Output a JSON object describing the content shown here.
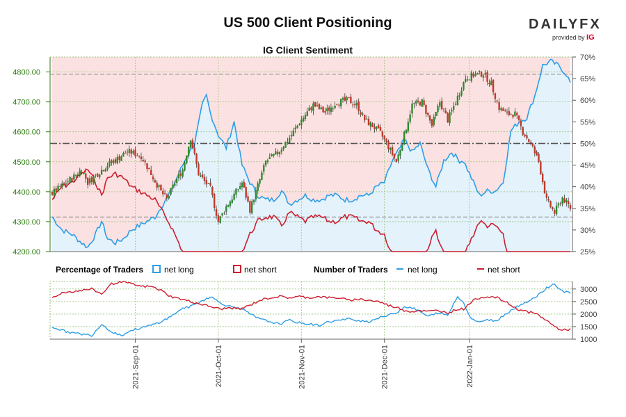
{
  "header": {
    "title": "US 500 Client Positioning",
    "subtitle": "IG Client Sentiment",
    "brand": "DAILYFX",
    "brand_sub": "provided by",
    "brand_ig": "IG"
  },
  "legend": {
    "pct_title": "Percentage of Traders",
    "pct_long": "net long",
    "pct_short": "net short",
    "num_title": "Number of Traders",
    "num_long": "net long",
    "num_short": "net short"
  },
  "colors": {
    "bull": "#2e8b2e",
    "bear": "#c0392b",
    "long": "#2e9ee6",
    "short": "#cc1f2f",
    "long_fill": "#e3f2fb",
    "short_fill": "#fbe1e1",
    "axis_left": "#2e7d10"
  },
  "chart_data": [
    {
      "type": "candlestick+line",
      "title": "IG Client Sentiment",
      "y_left": {
        "label": "",
        "range": [
          4200,
          4850
        ],
        "ticks": [
          "4200.00",
          "4300.00",
          "4400.00",
          "4500.00",
          "4600.00",
          "4700.00",
          "4800.00"
        ]
      },
      "y_right": {
        "label": "",
        "range": [
          25,
          70
        ],
        "unit": "%",
        "ticks": [
          "25%",
          "30%",
          "35%",
          "40%",
          "45%",
          "50%",
          "55%",
          "60%",
          "65%",
          "70%"
        ]
      },
      "reference_lines_pct": [
        66,
        50,
        33
      ],
      "x_ticks": [
        "2021-Sep-01",
        "2021-Oct-01",
        "2021-Nov-01",
        "2021-Dec-01",
        "2022-Jan-01"
      ],
      "price_anchors": [
        [
          0,
          4395
        ],
        [
          5,
          4420
        ],
        [
          10,
          4445
        ],
        [
          15,
          4475
        ],
        [
          18,
          4430
        ],
        [
          22,
          4455
        ],
        [
          28,
          4490
        ],
        [
          33,
          4510
        ],
        [
          38,
          4535
        ],
        [
          45,
          4520
        ],
        [
          50,
          4460
        ],
        [
          55,
          4400
        ],
        [
          58,
          4375
        ],
        [
          62,
          4430
        ],
        [
          66,
          4475
        ],
        [
          70,
          4580
        ],
        [
          74,
          4460
        ],
        [
          80,
          4410
        ],
        [
          84,
          4300
        ],
        [
          88,
          4350
        ],
        [
          92,
          4390
        ],
        [
          96,
          4430
        ],
        [
          100,
          4340
        ],
        [
          104,
          4420
        ],
        [
          108,
          4500
        ],
        [
          114,
          4530
        ],
        [
          120,
          4580
        ],
        [
          126,
          4640
        ],
        [
          132,
          4690
        ],
        [
          138,
          4665
        ],
        [
          144,
          4700
        ],
        [
          150,
          4705
        ],
        [
          154,
          4690
        ],
        [
          158,
          4640
        ],
        [
          162,
          4620
        ],
        [
          166,
          4595
        ],
        [
          170,
          4550
        ],
        [
          174,
          4500
        ],
        [
          178,
          4590
        ],
        [
          182,
          4690
        ],
        [
          187,
          4700
        ],
        [
          192,
          4620
        ],
        [
          196,
          4700
        ],
        [
          200,
          4640
        ],
        [
          204,
          4700
        ],
        [
          209,
          4780
        ],
        [
          213,
          4790
        ],
        [
          218,
          4795
        ],
        [
          222,
          4760
        ],
        [
          226,
          4680
        ],
        [
          230,
          4660
        ],
        [
          234,
          4660
        ],
        [
          238,
          4600
        ],
        [
          242,
          4560
        ],
        [
          246,
          4500
        ],
        [
          250,
          4370
        ],
        [
          254,
          4330
        ],
        [
          258,
          4380
        ],
        [
          262,
          4345
        ]
      ],
      "net_long_pct_anchors": [
        [
          0,
          33
        ],
        [
          5,
          30
        ],
        [
          10,
          29
        ],
        [
          15,
          27
        ],
        [
          18,
          26
        ],
        [
          22,
          29
        ],
        [
          25,
          32
        ],
        [
          28,
          28
        ],
        [
          32,
          27
        ],
        [
          36,
          28
        ],
        [
          40,
          30
        ],
        [
          44,
          31
        ],
        [
          48,
          32
        ],
        [
          52,
          33
        ],
        [
          56,
          36
        ],
        [
          60,
          39
        ],
        [
          64,
          43
        ],
        [
          68,
          47
        ],
        [
          72,
          50
        ],
        [
          76,
          59
        ],
        [
          78,
          61
        ],
        [
          80,
          57
        ],
        [
          84,
          52
        ],
        [
          88,
          49
        ],
        [
          92,
          55
        ],
        [
          96,
          45
        ],
        [
          100,
          41
        ],
        [
          104,
          38
        ],
        [
          108,
          37
        ],
        [
          112,
          37
        ],
        [
          116,
          39
        ],
        [
          120,
          36
        ],
        [
          124,
          37
        ],
        [
          128,
          38
        ],
        [
          132,
          37
        ],
        [
          136,
          37
        ],
        [
          140,
          38
        ],
        [
          144,
          38
        ],
        [
          148,
          37
        ],
        [
          152,
          37
        ],
        [
          156,
          38
        ],
        [
          160,
          38
        ],
        [
          164,
          40
        ],
        [
          168,
          41
        ],
        [
          172,
          46
        ],
        [
          176,
          49
        ],
        [
          178,
          51
        ],
        [
          182,
          48
        ],
        [
          186,
          50
        ],
        [
          190,
          44
        ],
        [
          194,
          40
        ],
        [
          198,
          46
        ],
        [
          202,
          48
        ],
        [
          206,
          46
        ],
        [
          208,
          46
        ],
        [
          212,
          42
        ],
        [
          216,
          38
        ],
        [
          220,
          39
        ],
        [
          224,
          39
        ],
        [
          228,
          41
        ],
        [
          232,
          53
        ],
        [
          236,
          55
        ],
        [
          240,
          56
        ],
        [
          244,
          61
        ],
        [
          248,
          68
        ],
        [
          252,
          69
        ],
        [
          256,
          68
        ],
        [
          260,
          66
        ],
        [
          262,
          64
        ]
      ],
      "net_short_pct_anchors": [
        [
          0,
          67
        ],
        [
          5,
          70
        ],
        [
          10,
          71
        ],
        [
          15,
          73
        ],
        [
          18,
          74
        ],
        [
          22,
          71
        ],
        [
          25,
          68
        ],
        [
          28,
          72
        ],
        [
          32,
          73
        ],
        [
          36,
          72
        ],
        [
          40,
          70
        ],
        [
          44,
          69
        ],
        [
          48,
          68
        ],
        [
          52,
          67
        ],
        [
          56,
          64
        ],
        [
          60,
          61
        ],
        [
          64,
          57
        ],
        [
          68,
          53
        ],
        [
          72,
          50
        ],
        [
          76,
          41
        ],
        [
          78,
          39
        ],
        [
          80,
          43
        ],
        [
          84,
          48
        ],
        [
          88,
          51
        ],
        [
          92,
          45
        ],
        [
          96,
          55
        ],
        [
          100,
          59
        ],
        [
          104,
          62
        ],
        [
          108,
          63
        ],
        [
          112,
          63
        ],
        [
          116,
          61
        ],
        [
          120,
          64
        ],
        [
          124,
          63
        ],
        [
          128,
          62
        ],
        [
          132,
          63
        ],
        [
          136,
          63
        ],
        [
          140,
          62
        ],
        [
          144,
          62
        ],
        [
          148,
          63
        ],
        [
          152,
          63
        ],
        [
          156,
          62
        ],
        [
          160,
          62
        ],
        [
          164,
          60
        ],
        [
          168,
          59
        ],
        [
          172,
          54
        ],
        [
          176,
          51
        ],
        [
          178,
          49
        ],
        [
          182,
          52
        ],
        [
          186,
          50
        ],
        [
          190,
          56
        ],
        [
          194,
          60
        ],
        [
          198,
          54
        ],
        [
          202,
          52
        ],
        [
          206,
          54
        ],
        [
          208,
          54
        ],
        [
          212,
          58
        ],
        [
          216,
          62
        ],
        [
          220,
          61
        ],
        [
          224,
          61
        ],
        [
          228,
          59
        ],
        [
          232,
          47
        ],
        [
          236,
          45
        ],
        [
          240,
          44
        ],
        [
          244,
          39
        ],
        [
          248,
          32
        ],
        [
          252,
          31
        ],
        [
          256,
          32
        ],
        [
          260,
          34
        ],
        [
          262,
          36
        ]
      ],
      "series": [
        {
          "name": "net long",
          "kind": "percentage"
        },
        {
          "name": "net short",
          "kind": "percentage"
        }
      ]
    },
    {
      "type": "line",
      "y_right": {
        "range": [
          1000,
          3300
        ],
        "ticks": [
          "1000",
          "1500",
          "2000",
          "2500",
          "3000"
        ]
      },
      "net_long_count_anchors": [
        [
          0,
          1500
        ],
        [
          5,
          1350
        ],
        [
          10,
          1250
        ],
        [
          15,
          1200
        ],
        [
          20,
          1150
        ],
        [
          25,
          1600
        ],
        [
          30,
          1300
        ],
        [
          35,
          1150
        ],
        [
          40,
          1350
        ],
        [
          45,
          1450
        ],
        [
          50,
          1550
        ],
        [
          55,
          1700
        ],
        [
          60,
          1900
        ],
        [
          65,
          2200
        ],
        [
          70,
          2300
        ],
        [
          75,
          2500
        ],
        [
          80,
          2700
        ],
        [
          85,
          2450
        ],
        [
          90,
          2300
        ],
        [
          95,
          2250
        ],
        [
          100,
          2000
        ],
        [
          105,
          1800
        ],
        [
          110,
          1700
        ],
        [
          115,
          1600
        ],
        [
          120,
          1750
        ],
        [
          125,
          1650
        ],
        [
          130,
          1600
        ],
        [
          135,
          1550
        ],
        [
          140,
          1700
        ],
        [
          145,
          1750
        ],
        [
          150,
          1800
        ],
        [
          155,
          1750
        ],
        [
          160,
          1700
        ],
        [
          165,
          1850
        ],
        [
          170,
          1950
        ],
        [
          175,
          2100
        ],
        [
          178,
          2300
        ],
        [
          182,
          2250
        ],
        [
          186,
          2100
        ],
        [
          190,
          1900
        ],
        [
          195,
          2050
        ],
        [
          200,
          1950
        ],
        [
          205,
          2700
        ],
        [
          208,
          2450
        ],
        [
          212,
          1800
        ],
        [
          216,
          1700
        ],
        [
          220,
          1750
        ],
        [
          225,
          1750
        ],
        [
          230,
          2050
        ],
        [
          235,
          2300
        ],
        [
          240,
          2500
        ],
        [
          245,
          2700
        ],
        [
          250,
          3050
        ],
        [
          254,
          3200
        ],
        [
          258,
          2900
        ],
        [
          262,
          2850
        ]
      ],
      "net_short_count_anchors": [
        [
          0,
          2650
        ],
        [
          5,
          2850
        ],
        [
          10,
          2900
        ],
        [
          15,
          2950
        ],
        [
          20,
          3000
        ],
        [
          25,
          2800
        ],
        [
          30,
          3200
        ],
        [
          35,
          3300
        ],
        [
          40,
          3200
        ],
        [
          45,
          3100
        ],
        [
          50,
          3100
        ],
        [
          55,
          2950
        ],
        [
          60,
          2700
        ],
        [
          65,
          2600
        ],
        [
          70,
          2500
        ],
        [
          75,
          2400
        ],
        [
          80,
          2300
        ],
        [
          85,
          2200
        ],
        [
          90,
          2250
        ],
        [
          95,
          2200
        ],
        [
          100,
          2350
        ],
        [
          105,
          2550
        ],
        [
          110,
          2650
        ],
        [
          115,
          2700
        ],
        [
          120,
          2650
        ],
        [
          125,
          2700
        ],
        [
          130,
          2650
        ],
        [
          135,
          2700
        ],
        [
          140,
          2650
        ],
        [
          145,
          2650
        ],
        [
          150,
          2550
        ],
        [
          155,
          2600
        ],
        [
          160,
          2550
        ],
        [
          165,
          2500
        ],
        [
          170,
          2350
        ],
        [
          175,
          2250
        ],
        [
          178,
          2150
        ],
        [
          182,
          2100
        ],
        [
          186,
          2150
        ],
        [
          190,
          2100
        ],
        [
          195,
          2150
        ],
        [
          200,
          2050
        ],
        [
          205,
          2200
        ],
        [
          208,
          2200
        ],
        [
          212,
          2500
        ],
        [
          216,
          2650
        ],
        [
          220,
          2700
        ],
        [
          225,
          2650
        ],
        [
          230,
          2450
        ],
        [
          235,
          2200
        ],
        [
          240,
          2100
        ],
        [
          245,
          2000
        ],
        [
          250,
          1750
        ],
        [
          254,
          1500
        ],
        [
          258,
          1350
        ],
        [
          262,
          1400
        ]
      ],
      "series": [
        {
          "name": "net long",
          "kind": "count"
        },
        {
          "name": "net short",
          "kind": "count"
        }
      ]
    }
  ]
}
